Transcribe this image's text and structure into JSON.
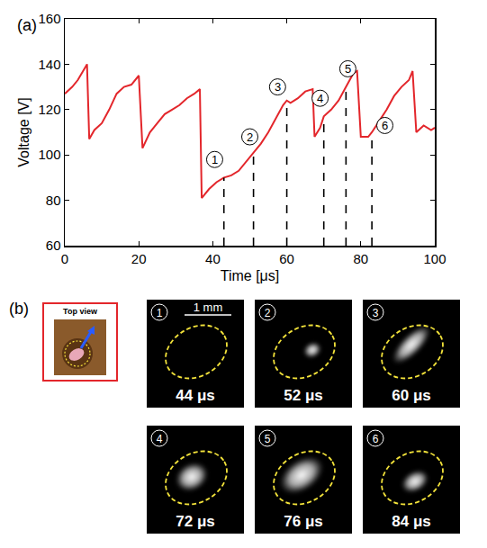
{
  "chart_data": {
    "type": "line",
    "panel_label": "(a)",
    "x_label": "Time [μs]",
    "y_label": "Voltage [V]",
    "color": "#e3262b",
    "x": [
      0,
      2,
      3.5,
      5,
      6,
      6.6,
      8,
      10,
      12,
      14,
      16,
      18,
      20,
      21,
      23,
      25,
      27,
      29,
      31,
      33,
      35,
      36.5,
      37,
      39,
      41,
      43,
      45,
      47,
      49,
      51,
      53,
      55,
      57,
      59,
      60,
      61,
      63,
      65,
      67,
      67.5,
      69,
      70,
      72,
      74,
      76,
      77,
      78,
      79,
      80,
      82,
      83,
      85,
      87,
      89,
      91,
      93,
      94,
      95,
      97,
      99,
      100
    ],
    "values": [
      127,
      130,
      133,
      137,
      140,
      107,
      111,
      114,
      120,
      127,
      130,
      131,
      135,
      103,
      110,
      114,
      118,
      120,
      122,
      125,
      127,
      129,
      81,
      85,
      88,
      90,
      91,
      93,
      97,
      101,
      105,
      110,
      116,
      122,
      124,
      123,
      125,
      128,
      129,
      108,
      112,
      117,
      120,
      124,
      130,
      133,
      136,
      137,
      108,
      108,
      110,
      115,
      120,
      126,
      130,
      133,
      137,
      110,
      113,
      111,
      112
    ],
    "xlim": [
      0,
      100
    ],
    "ylim": [
      60,
      160
    ],
    "xticks": [
      0,
      20,
      40,
      60,
      80,
      100
    ],
    "yticks": [
      60,
      80,
      100,
      120,
      140,
      160
    ],
    "grid": false,
    "markers": [
      {
        "label": "1",
        "x": 43,
        "y": 90,
        "label_x": 40.5,
        "label_y": 98
      },
      {
        "label": "2",
        "x": 51,
        "y": 101,
        "label_x": 50,
        "label_y": 108
      },
      {
        "label": "3",
        "x": 60,
        "y": 124,
        "label_x": 57.5,
        "label_y": 130
      },
      {
        "label": "4",
        "x": 70,
        "y": 117,
        "label_x": 69,
        "label_y": 125
      },
      {
        "label": "5",
        "x": 76,
        "y": 130,
        "label_x": 76.5,
        "label_y": 138
      },
      {
        "label": "6",
        "x": 83,
        "y": 110,
        "label_x": 86.5,
        "label_y": 113
      }
    ]
  },
  "images": {
    "panel_label": "(b)",
    "inset_title": "Top view",
    "scale_bar": "1 mm",
    "frames": [
      {
        "label": "1",
        "time": "44 μs"
      },
      {
        "label": "2",
        "time": "52 μs"
      },
      {
        "label": "3",
        "time": "60 μs"
      },
      {
        "label": "4",
        "time": "72 μs"
      },
      {
        "label": "5",
        "time": "76 μs"
      },
      {
        "label": "6",
        "time": "84 μs"
      }
    ]
  }
}
